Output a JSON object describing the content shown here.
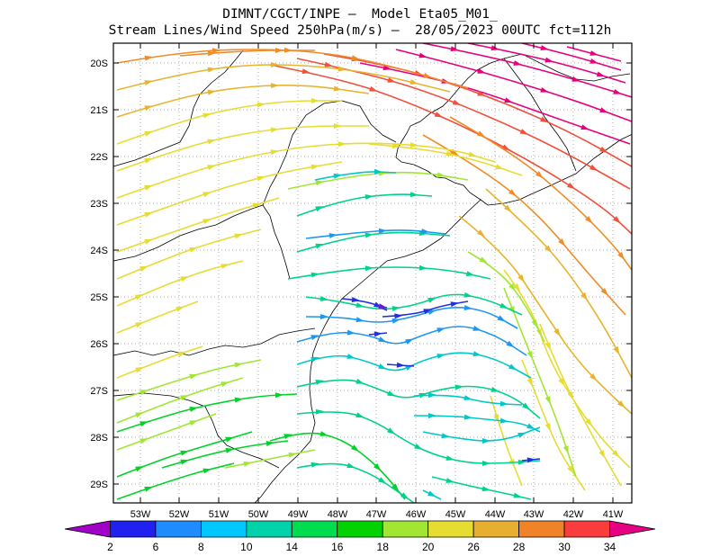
{
  "title_line1": "DIMNT/CGCT/INPE —  Model Eta05_M01_",
  "title_line2": "Stream Lines/Wind Speed 250hPa(m/s) —  28/05/2023 00UTC fct=112h",
  "lat_labels": [
    "20S",
    "21S",
    "22S",
    "23S",
    "24S",
    "25S",
    "26S",
    "27S",
    "28S",
    "29S"
  ],
  "lon_labels": [
    "53W",
    "52W",
    "51W",
    "50W",
    "49W",
    "48W",
    "47W",
    "46W",
    "45W",
    "44W",
    "43W",
    "42W",
    "41W"
  ],
  "colorbar": {
    "colors": [
      "#a000c8",
      "#2020f0",
      "#1e8cff",
      "#00c8ff",
      "#00d2aa",
      "#00dc50",
      "#00d200",
      "#a0e632",
      "#e6dc32",
      "#e6af2d",
      "#f08228",
      "#fa3c3c",
      "#e60082"
    ],
    "labels": [
      "2",
      "6",
      "8",
      "10",
      "14",
      "16",
      "18",
      "20",
      "26",
      "28",
      "30",
      "34"
    ]
  },
  "streamline_colors": {
    "magenta": "#e6007e",
    "red": "#f0503c",
    "orange": "#f08c28",
    "gold": "#e6b42d",
    "yellow": "#e6dc32",
    "lime": "#a0e632",
    "green": "#00d228",
    "teal": "#00d28c",
    "cyan": "#00c8c8",
    "sky": "#1e96f0",
    "blue": "#2030e0",
    "violet": "#6a1ad0"
  }
}
